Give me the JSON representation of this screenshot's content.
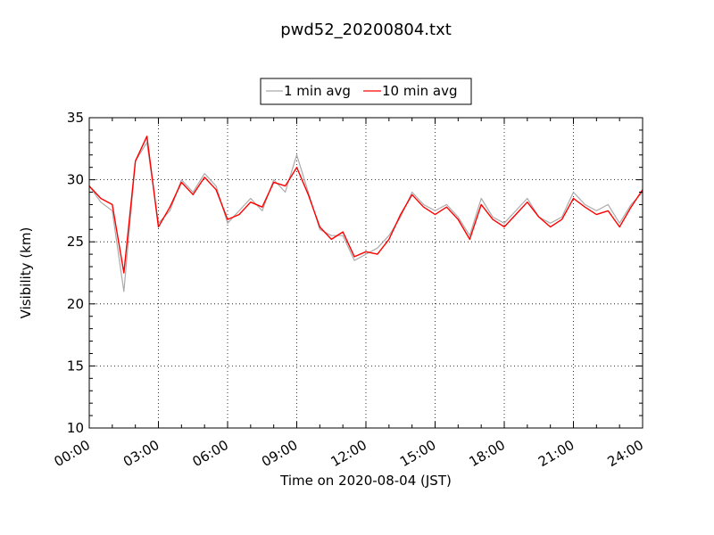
{
  "chart_data": {
    "type": "line",
    "title": "pwd52_20200804.txt",
    "xlabel": "Time on 2020-08-04 (JST)",
    "ylabel": "Visibility (km)",
    "xlim": [
      "00:00",
      "24:00"
    ],
    "ylim": [
      10,
      35
    ],
    "x_ticks": [
      "00:00",
      "03:00",
      "06:00",
      "09:00",
      "12:00",
      "15:00",
      "18:00",
      "21:00",
      "24:00"
    ],
    "y_ticks": [
      10,
      15,
      20,
      25,
      30,
      35
    ],
    "grid": true,
    "legend": "top-center",
    "series": [
      {
        "name": "1 min avg",
        "color": "#aaaaaa",
        "x_hours": [
          0,
          0.5,
          1,
          1.5,
          2,
          2.5,
          3,
          3.5,
          4,
          4.5,
          5,
          5.5,
          6,
          6.5,
          7,
          7.5,
          8,
          8.5,
          9,
          9.5,
          10,
          10.5,
          11,
          11.5,
          12,
          12.5,
          13,
          13.5,
          14,
          14.5,
          15,
          15.5,
          16,
          16.5,
          17,
          17.5,
          18,
          18.5,
          19,
          19.5,
          20,
          20.5,
          21,
          21.5,
          22,
          22.5,
          23,
          23.5,
          24
        ],
        "values": [
          29.5,
          28.2,
          27.5,
          21.0,
          31.5,
          33.0,
          26.5,
          27.5,
          30.0,
          29.0,
          30.5,
          29.5,
          26.5,
          27.5,
          28.5,
          27.5,
          30.0,
          29.0,
          32.0,
          29.0,
          26.0,
          25.5,
          25.5,
          23.5,
          24.0,
          24.5,
          25.5,
          27.0,
          29.0,
          28.0,
          27.5,
          28.0,
          27.0,
          25.5,
          28.5,
          27.0,
          26.5,
          27.5,
          28.5,
          27.0,
          26.5,
          27.0,
          29.0,
          28.0,
          27.5,
          28.0,
          26.5,
          28.0,
          29.0
        ]
      },
      {
        "name": "10 min avg",
        "color": "#ff0000",
        "x_hours": [
          0,
          0.5,
          1,
          1.5,
          2,
          2.5,
          3,
          3.5,
          4,
          4.5,
          5,
          5.5,
          6,
          6.5,
          7,
          7.5,
          8,
          8.5,
          9,
          9.5,
          10,
          10.5,
          11,
          11.5,
          12,
          12.5,
          13,
          13.5,
          14,
          14.5,
          15,
          15.5,
          16,
          16.5,
          17,
          17.5,
          18,
          18.5,
          19,
          19.5,
          20,
          20.5,
          21,
          21.5,
          22,
          22.5,
          23,
          23.5,
          24
        ],
        "values": [
          29.5,
          28.5,
          28.0,
          22.5,
          31.5,
          33.5,
          26.2,
          27.8,
          29.8,
          28.8,
          30.2,
          29.2,
          26.8,
          27.2,
          28.2,
          27.8,
          29.8,
          29.5,
          31.0,
          28.8,
          26.2,
          25.2,
          25.8,
          23.8,
          24.2,
          24.0,
          25.2,
          27.2,
          28.8,
          27.8,
          27.2,
          27.8,
          26.8,
          25.2,
          28.0,
          26.8,
          26.2,
          27.2,
          28.2,
          27.0,
          26.2,
          26.8,
          28.5,
          27.8,
          27.2,
          27.5,
          26.2,
          27.8,
          29.2
        ]
      }
    ]
  }
}
